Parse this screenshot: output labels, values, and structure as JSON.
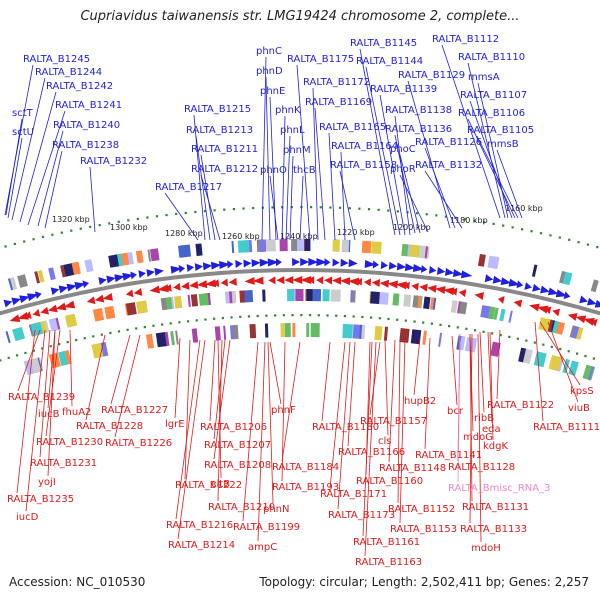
{
  "title": "Cupriavidus taiwanensis str. LMG19424 chromosome 2, complete...",
  "accession": "Accession: NC_010530",
  "summary": "Topology: circular; Length: 2,502,411 bp; Genes: 2,257",
  "colors": {
    "forward": "#1f1fe0",
    "reverse": "#e01a1a",
    "rna": "#ee88cc",
    "backbone": "#888888",
    "dots": "#2a8a2a"
  },
  "ticks": [
    "1320 kbp",
    "1300 kbp",
    "1280 kbp",
    "1260 kbp",
    "1240 kbp",
    "1220 kbp",
    "1200 kbp",
    "1180 kbp",
    "1160 kbp"
  ],
  "top_labels": [
    "RALTA_B1245",
    "RALTA_B1244",
    "RALTA_B1242",
    "sctT",
    "RALTA_B1241",
    "sctU",
    "RALTA_B1240",
    "RALTA_B1238",
    "RALTA_B1232",
    "phnC",
    "phnD",
    "phnE",
    "RALTA_B1215",
    "RALTA_B1213",
    "RALTA_B1211",
    "RALTA_B1212",
    "RALTA_B1217",
    "phnK",
    "phnL",
    "phnM",
    "phnO",
    "thcB",
    "RALTA_B1175",
    "RALTA_B1172",
    "RALTA_B1169",
    "RALTA_B1165",
    "RALTA_B1164",
    "RALTA_B1158",
    "RALTA_B1145",
    "RALTA_B1144",
    "RALTA_B1139",
    "RALTA_B1138",
    "RALTA_B1136",
    "phoC",
    "phoR",
    "RALTA_B1129",
    "RALTA_B1126",
    "RALTA_B1132",
    "RALTA_B1112",
    "RALTA_B1110",
    "mmsA",
    "RALTA_B1107",
    "RALTA_B1106",
    "RALTA_B1105",
    "mmsB"
  ],
  "bottom_labels": [
    "RALTA_B1239",
    "iucB",
    "fhuA2",
    "RALTA_B1230",
    "RALTA_B1231",
    "yojI",
    "RALTA_B1235",
    "iucD",
    "RALTA_B1227",
    "RALTA_B1228",
    "RALTA_B1226",
    "lgrE",
    "RALTA_B1206",
    "RALTA_B1207",
    "RALTA_B1208",
    "RALTA_B1222",
    "citB",
    "RALTA_B1210",
    "RALTA_B1216",
    "RALTA_B1214",
    "phnF",
    "RALTA_B1193",
    "phnN",
    "RALTA_B1199",
    "ampC",
    "RALTA_B1184",
    "RALTA_B1180",
    "RALTA_B1166",
    "RALTA_B1171",
    "RALTA_B1173",
    "RALTA_B1160",
    "RALTA_B1161",
    "RALTA_B1163",
    "RALTA_B1157",
    "cls",
    "RALTA_B1148",
    "RALTA_B1152",
    "RALTA_B1153",
    "hupB2",
    "bcr",
    "RALTA_B1141",
    "RALTA_B1122",
    "ribB",
    "eda",
    "mdoG",
    "kdgK",
    "RALTA_B1128",
    "RALTA_Bmisc_RNA_3",
    "RALTA_B1131",
    "RALTA_B1133",
    "mdoH",
    "kpsS",
    "viuB",
    "RALTA_B1111"
  ]
}
